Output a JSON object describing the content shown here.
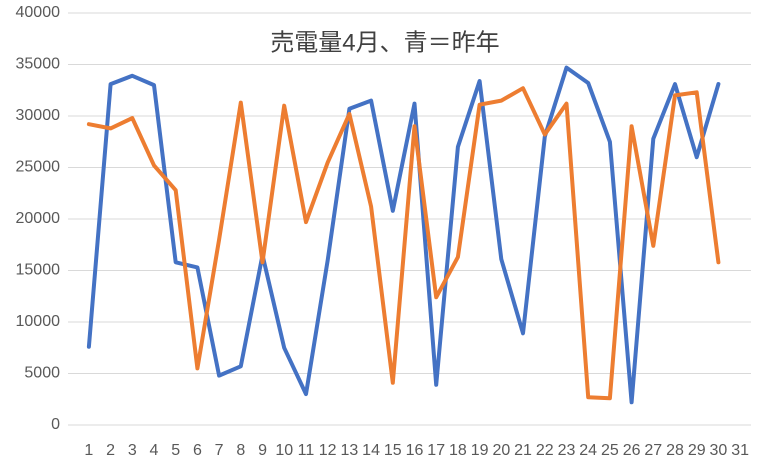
{
  "chart_data": {
    "type": "line",
    "title": "売電量4月、青＝昨年",
    "categories": [
      "1",
      "2",
      "3",
      "4",
      "5",
      "6",
      "7",
      "8",
      "9",
      "10",
      "11",
      "12",
      "13",
      "14",
      "15",
      "16",
      "17",
      "18",
      "19",
      "20",
      "21",
      "22",
      "23",
      "24",
      "25",
      "26",
      "27",
      "28",
      "29",
      "30",
      "31"
    ],
    "series": [
      {
        "color": "#4472c4",
        "values": [
          7600,
          33100,
          33900,
          33000,
          15800,
          15300,
          4800,
          5700,
          16500,
          7500,
          3000,
          16000,
          30700,
          31500,
          20800,
          31200,
          3900,
          27000,
          33400,
          16100,
          8900,
          28000,
          34700,
          33200,
          27500,
          2200,
          27800,
          33100,
          26000,
          33100,
          null
        ]
      },
      {
        "color": "#ed7d31",
        "values": [
          29200,
          28800,
          29800,
          25200,
          22800,
          5500,
          18000,
          31300,
          15800,
          31000,
          19700,
          25500,
          30200,
          21200,
          4100,
          29000,
          12400,
          16300,
          31100,
          31500,
          32700,
          28200,
          31200,
          2700,
          2600,
          29000,
          17400,
          32000,
          32300,
          15800,
          null
        ]
      }
    ],
    "ylim": [
      0,
      40000
    ],
    "yticks": [
      0,
      5000,
      10000,
      15000,
      20000,
      25000,
      30000,
      35000,
      40000
    ],
    "grid": true
  }
}
